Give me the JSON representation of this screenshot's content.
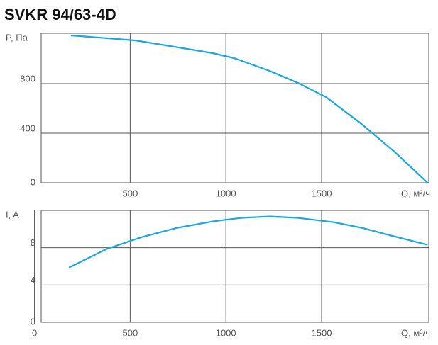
{
  "title": "SVKR 94/63-4D",
  "chart_data": [
    {
      "type": "line",
      "y_label": "P, Па",
      "x_label": "Q, м³/ч",
      "x": [
        191,
        524,
        709,
        931,
        1043,
        1228,
        1376,
        1524,
        1709,
        1876,
        2054
      ],
      "series": [
        {
          "name": "P",
          "color": "#1ba6e0",
          "values": [
            1189,
            1149,
            1103,
            1046,
            1006,
            903,
            806,
            691,
            474,
            257,
            0
          ]
        }
      ],
      "xlim": [
        35,
        2060
      ],
      "ylim": [
        0,
        1206
      ],
      "xticks": [
        500,
        1000,
        1500
      ],
      "yticks": [
        0,
        400,
        800
      ],
      "grid": true
    },
    {
      "type": "line",
      "y_label": "I, A",
      "x_label": "Q, м³/ч",
      "x": [
        180,
        376,
        561,
        746,
        931,
        1080,
        1228,
        1376,
        1561,
        1709,
        1894,
        2054
      ],
      "series": [
        {
          "name": "I",
          "color": "#1ba6e0",
          "values": [
            5.87,
            7.85,
            9.14,
            10.13,
            10.82,
            11.2,
            11.35,
            11.2,
            10.74,
            10.13,
            9.14,
            8.3
          ]
        }
      ],
      "xlim": [
        35,
        2060
      ],
      "ylim": [
        0,
        12
      ],
      "xticks": [
        0,
        500,
        1000,
        1500
      ],
      "yticks": [
        0,
        4,
        8
      ],
      "grid": true
    }
  ]
}
